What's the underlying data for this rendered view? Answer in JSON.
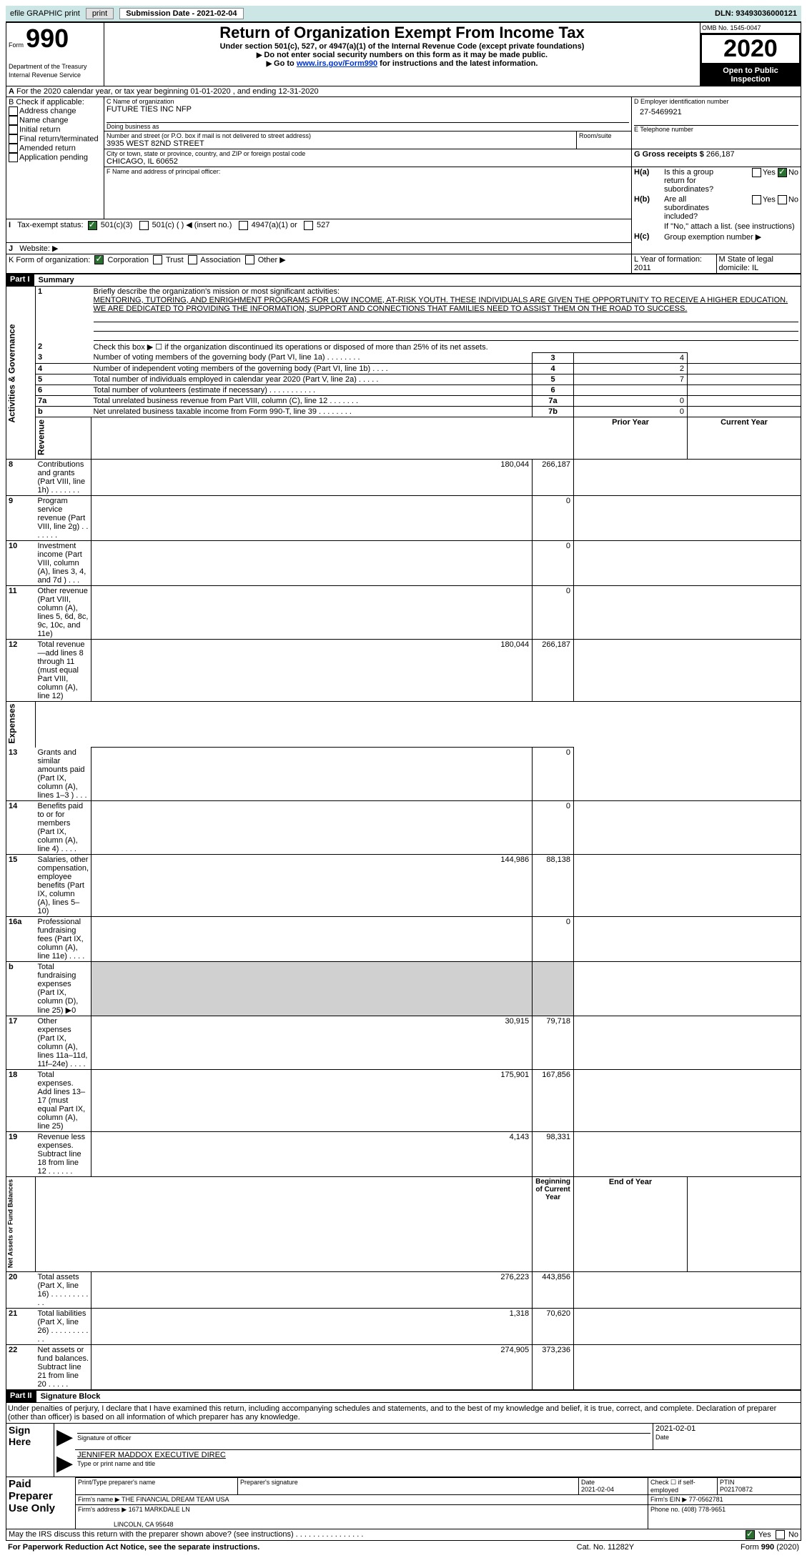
{
  "topbar": {
    "efile": "efile GRAPHIC print",
    "submission": "Submission Date - 2021-02-04",
    "dln": "DLN: 93493036000121"
  },
  "header": {
    "form": "Form",
    "num": "990",
    "title": "Return of Organization Exempt From Income Tax",
    "sub1": "Under section 501(c), 527, or 4947(a)(1) of the Internal Revenue Code (except private foundations)",
    "sub2": "Do not enter social security numbers on this form as it may be made public.",
    "sub3_pre": "Go to ",
    "sub3_link": "www.irs.gov/Form990",
    "sub3_post": " for instructions and the latest information.",
    "dept": "Department of the Treasury",
    "irs": "Internal Revenue Service",
    "omb": "OMB No. 1545-0047",
    "year": "2020",
    "open": "Open to Public Inspection"
  },
  "a_line": {
    "text": "For the 2020 calendar year, or tax year beginning 01-01-2020   , and ending 12-31-2020",
    "label": "A"
  },
  "b": {
    "title": "B Check if applicable:",
    "items": [
      "Address change",
      "Name change",
      "Initial return",
      "Final return/terminated",
      "Amended return",
      "Application pending"
    ]
  },
  "c": {
    "name_label": "C Name of organization",
    "name": "FUTURE TIES INC NFP",
    "dba": "Doing business as",
    "addr_label": "Number and street (or P.O. box if mail is not delivered to street address)",
    "room": "Room/suite",
    "addr": "3935 WEST 82ND STREET",
    "city_label": "City or town, state or province, country, and ZIP or foreign postal code",
    "city": "CHICAGO, IL  60652"
  },
  "d": {
    "label": "D Employer identification number",
    "ein": "27-5469921"
  },
  "e": {
    "label": "E Telephone number"
  },
  "g": {
    "label": "G Gross receipts $ ",
    "val": "266,187"
  },
  "f": {
    "label": "F Name and address of principal officer:"
  },
  "h": {
    "a": "Is this a group return for subordinates?",
    "b": "Are all subordinates included?",
    "b_note": "If \"No,\" attach a list. (see instructions)",
    "c": "Group exemption number ▶"
  },
  "i": {
    "label": "Tax-exempt status:",
    "opts": [
      "501(c)(3)",
      "501(c) (  ) ◀ (insert no.)",
      "4947(a)(1) or",
      "527"
    ]
  },
  "j": {
    "label": "Website: ▶"
  },
  "k": {
    "label": "K Form of organization:",
    "opts": [
      "Corporation",
      "Trust",
      "Association",
      "Other ▶"
    ]
  },
  "l": {
    "label": "L Year of formation: 2011"
  },
  "m": {
    "label": "M State of legal domicile: IL"
  },
  "part1": {
    "title": "Part I",
    "name": "Summary"
  },
  "summary": {
    "line1_label": "1",
    "line1": "Briefly describe the organization's mission or most significant activities:",
    "mission": "MENTORING, TUTORING, AND ENRIGHMENT PROGRAMS FOR LOW INCOME, AT-RISK YOUTH. THESE INDIVIDUALS ARE GIVEN THE OPPORTUNITY TO RECEIVE A HIGHER EDUCATION. WE ARE DEDICATED TO PROVIDING THE INFORMATION, SUPPORT AND CONNECTIONS THAT FAMILIES NEED TO ASSIST THEM ON THE ROAD TO SUCCESS.",
    "line2": "Check this box ▶ ☐  if the organization discontinued its operations or disposed of more than 25% of its net assets.",
    "rows_gov": [
      {
        "n": "3",
        "t": "Number of voting members of the governing body (Part VI, line 1a)  .   .   .   .   .   .   .   .",
        "box": "3",
        "v": "4"
      },
      {
        "n": "4",
        "t": "Number of independent voting members of the governing body (Part VI, line 1b)  .   .   .   .",
        "box": "4",
        "v": "2"
      },
      {
        "n": "5",
        "t": "Total number of individuals employed in calendar year 2020 (Part V, line 2a)  .   .   .   .   .",
        "box": "5",
        "v": "7"
      },
      {
        "n": "6",
        "t": "Total number of volunteers (estimate if necessary)   .   .   .   .   .   .   .   .   .   .   .",
        "box": "6",
        "v": ""
      },
      {
        "n": "7a",
        "t": "Total unrelated business revenue from Part VIII, column (C), line 12   .   .   .   .   .   .   .",
        "box": "7a",
        "v": "0"
      },
      {
        "n": "b",
        "t": "Net unrelated business taxable income from Form 990-T, line 39  .   .   .   .   .   .   .   .",
        "box": "7b",
        "v": "0"
      }
    ],
    "hdr_prior": "Prior Year",
    "hdr_curr": "Current Year",
    "rows_rev": [
      {
        "n": "8",
        "t": "Contributions and grants (Part VIII, line 1h)  .   .   .   .   .   .   .",
        "p": "180,044",
        "c": "266,187"
      },
      {
        "n": "9",
        "t": "Program service revenue (Part VIII, line 2g)  .   .   .   .   .   .   .",
        "p": "",
        "c": "0"
      },
      {
        "n": "10",
        "t": "Investment income (Part VIII, column (A), lines 3, 4, and 7d )   .   .   .",
        "p": "",
        "c": "0"
      },
      {
        "n": "11",
        "t": "Other revenue (Part VIII, column (A), lines 5, 6d, 8c, 9c, 10c, and 11e)",
        "p": "",
        "c": "0"
      },
      {
        "n": "12",
        "t": "Total revenue—add lines 8 through 11 (must equal Part VIII, column (A), line 12)",
        "p": "180,044",
        "c": "266,187"
      }
    ],
    "rows_exp": [
      {
        "n": "13",
        "t": "Grants and similar amounts paid (Part IX, column (A), lines 1–3 )  .   .   .",
        "p": "",
        "c": "0"
      },
      {
        "n": "14",
        "t": "Benefits paid to or for members (Part IX, column (A), line 4)  .   .   .   .",
        "p": "",
        "c": "0"
      },
      {
        "n": "15",
        "t": "Salaries, other compensation, employee benefits (Part IX, column (A), lines 5–10)",
        "p": "144,986",
        "c": "88,138"
      },
      {
        "n": "16a",
        "t": "Professional fundraising fees (Part IX, column (A), line 11e)  .   .   .   .",
        "p": "",
        "c": "0"
      },
      {
        "n": "b",
        "t": "Total fundraising expenses (Part IX, column (D), line 25) ▶0",
        "p": "grey",
        "c": "grey"
      },
      {
        "n": "17",
        "t": "Other expenses (Part IX, column (A), lines 11a–11d, 11f–24e)  .   .   .   .",
        "p": "30,915",
        "c": "79,718"
      },
      {
        "n": "18",
        "t": "Total expenses. Add lines 13–17 (must equal Part IX, column (A), line 25)",
        "p": "175,901",
        "c": "167,856"
      },
      {
        "n": "19",
        "t": "Revenue less expenses. Subtract line 18 from line 12  .   .   .   .   .   .",
        "p": "4,143",
        "c": "98,331"
      }
    ],
    "hdr_beg": "Beginning of Current Year",
    "hdr_end": "End of Year",
    "rows_net": [
      {
        "n": "20",
        "t": "Total assets (Part X, line 16)  .   .   .   .   .   .   .   .   .   .   .",
        "p": "276,223",
        "c": "443,856"
      },
      {
        "n": "21",
        "t": "Total liabilities (Part X, line 26)  .   .   .   .   .   .   .   .   .   .   .",
        "p": "1,318",
        "c": "70,620"
      },
      {
        "n": "22",
        "t": "Net assets or fund balances. Subtract line 21 from line 20  .   .   .   .   .",
        "p": "274,905",
        "c": "373,236"
      }
    ],
    "side": {
      "gov": "Activities & Governance",
      "rev": "Revenue",
      "exp": "Expenses",
      "net": "Net Assets or Fund Balances"
    }
  },
  "part2": {
    "title": "Part II",
    "name": "Signature Block",
    "decl": "Under penalties of perjury, I declare that I have examined this return, including accompanying schedules and statements, and to the best of my knowledge and belief, it is true, correct, and complete. Declaration of preparer (other than officer) is based on all information of which preparer has any knowledge.",
    "sign_here": "Sign Here",
    "sig_off": "Signature of officer",
    "date": "Date",
    "date_v": "2021-02-01",
    "officer": "JENNIFER MADDOX  EXECUTIVE DIREC",
    "type": "Type or print name and title",
    "paid": "Paid Preparer Use Only",
    "prep_name": "Print/Type preparer's name",
    "prep_sig": "Preparer's signature",
    "prep_date": "Date",
    "prep_date_v": "2021-02-04",
    "self": "Check ☐ if self-employed",
    "ptin": "PTIN",
    "ptin_v": "P02170872",
    "firm": "Firm's name  ▶ THE FINANCIAL DREAM TEAM USA",
    "firm_ein": "Firm's EIN ▶ 77-0562781",
    "firm_addr": "Firm's address ▶ 1671 MARKDALE LN",
    "firm_city": "LINCOLN, CA  95648",
    "phone": "Phone no. (408) 778-9651",
    "may": "May the IRS discuss this return with the preparer shown above? (see instructions)   .   .   .   .   .   .   .   .   .   .   .   .   .   .   .   .",
    "yes": "Yes",
    "no": "No",
    "footer_l": "For Paperwork Reduction Act Notice, see the separate instructions.",
    "footer_c": "Cat. No. 11282Y",
    "footer_r": "Form 990 (2020)"
  },
  "labels": {
    "yes": "Yes",
    "no": "No",
    "ha": "H(a)",
    "hb": "H(b)",
    "hc": "H(c)",
    "two": "2"
  }
}
